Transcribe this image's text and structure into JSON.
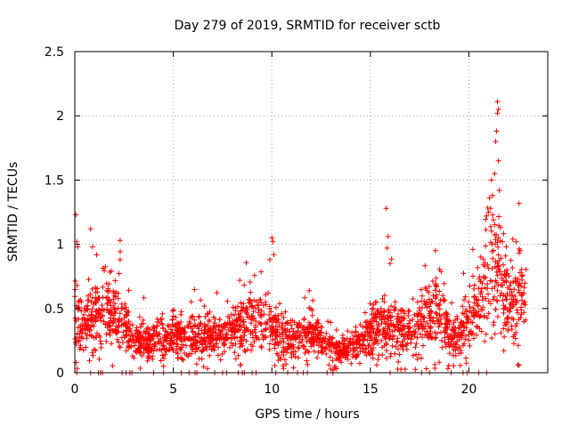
{
  "chart_data": {
    "type": "scatter",
    "title": "Day 279 of 2019, SRMTID for receiver sctb",
    "xlabel": "GPS time / hours",
    "ylabel": "SRMTID / TECUs",
    "xlim": [
      0,
      24
    ],
    "ylim": [
      0,
      2.5
    ],
    "xticks": [
      0,
      5,
      10,
      15,
      20
    ],
    "yticks": [
      0,
      0.5,
      1,
      1.5,
      2,
      2.5
    ],
    "xtick_labels": [
      "0",
      "5",
      "10",
      "15",
      "20"
    ],
    "ytick_labels": [
      "0",
      "0.5",
      "1",
      "1.5",
      "2",
      "2.5"
    ],
    "grid": true,
    "marker": "+",
    "series_color": "#ff0000",
    "envelope": {
      "description": "approximate median SRMTID level (TECU) vs GPS hour used to draw the dense point cloud",
      "x": [
        0.0,
        0.5,
        1.0,
        1.5,
        2.0,
        2.5,
        3.0,
        4.0,
        5.0,
        6.0,
        7.0,
        8.0,
        8.8,
        9.5,
        10.0,
        11.0,
        12.0,
        13.0,
        13.5,
        14.0,
        15.0,
        15.5,
        16.0,
        17.0,
        17.8,
        18.5,
        19.0,
        19.5,
        20.0,
        20.5,
        21.0,
        21.5,
        22.0,
        22.5,
        22.9
      ],
      "median": [
        0.5,
        0.35,
        0.45,
        0.5,
        0.45,
        0.38,
        0.25,
        0.25,
        0.28,
        0.28,
        0.28,
        0.3,
        0.45,
        0.38,
        0.35,
        0.25,
        0.3,
        0.22,
        0.15,
        0.2,
        0.3,
        0.4,
        0.38,
        0.3,
        0.45,
        0.5,
        0.3,
        0.28,
        0.4,
        0.55,
        0.85,
        0.8,
        0.55,
        0.6,
        0.55
      ]
    },
    "highlights": [
      {
        "x": 0.05,
        "y": 1.23
      },
      {
        "x": 0.1,
        "y": 1.02
      },
      {
        "x": 0.15,
        "y": 0.98
      },
      {
        "x": 0.8,
        "y": 1.12
      },
      {
        "x": 0.9,
        "y": 0.98
      },
      {
        "x": 2.3,
        "y": 1.03
      },
      {
        "x": 2.3,
        "y": 0.88
      },
      {
        "x": 9.9,
        "y": 0.88
      },
      {
        "x": 10.0,
        "y": 1.05
      },
      {
        "x": 10.05,
        "y": 1.02
      },
      {
        "x": 10.1,
        "y": 0.92
      },
      {
        "x": 15.8,
        "y": 1.28
      },
      {
        "x": 15.9,
        "y": 1.06
      },
      {
        "x": 15.85,
        "y": 0.97
      },
      {
        "x": 16.0,
        "y": 0.85
      },
      {
        "x": 18.3,
        "y": 0.95
      },
      {
        "x": 20.2,
        "y": 0.96
      },
      {
        "x": 20.6,
        "y": 0.9
      },
      {
        "x": 20.9,
        "y": 1.22
      },
      {
        "x": 21.0,
        "y": 1.25
      },
      {
        "x": 21.1,
        "y": 1.28
      },
      {
        "x": 21.15,
        "y": 1.5
      },
      {
        "x": 21.2,
        "y": 1.38
      },
      {
        "x": 21.3,
        "y": 1.55
      },
      {
        "x": 21.35,
        "y": 1.8
      },
      {
        "x": 21.4,
        "y": 1.88
      },
      {
        "x": 21.45,
        "y": 2.02
      },
      {
        "x": 21.45,
        "y": 2.11
      },
      {
        "x": 21.5,
        "y": 2.05
      },
      {
        "x": 21.5,
        "y": 1.65
      },
      {
        "x": 21.55,
        "y": 1.42
      },
      {
        "x": 21.6,
        "y": 1.13
      },
      {
        "x": 21.7,
        "y": 1.02
      },
      {
        "x": 22.4,
        "y": 1.02
      },
      {
        "x": 22.6,
        "y": 0.95
      }
    ],
    "zero_points_x": [
      0.1,
      0.8,
      1.2,
      1.3,
      1.4,
      2.4,
      2.6,
      2.8,
      2.9,
      4.0,
      4.5,
      5.4,
      5.8,
      6.1,
      6.2,
      7.1,
      7.5,
      7.7,
      8.3,
      8.5,
      8.6,
      9.0,
      9.2,
      10.2,
      10.8,
      11.3,
      11.6,
      11.8,
      12.8,
      13.1,
      16.0,
      17.6,
      18.0,
      19.1,
      19.7,
      19.9,
      20.5,
      20.9
    ]
  }
}
